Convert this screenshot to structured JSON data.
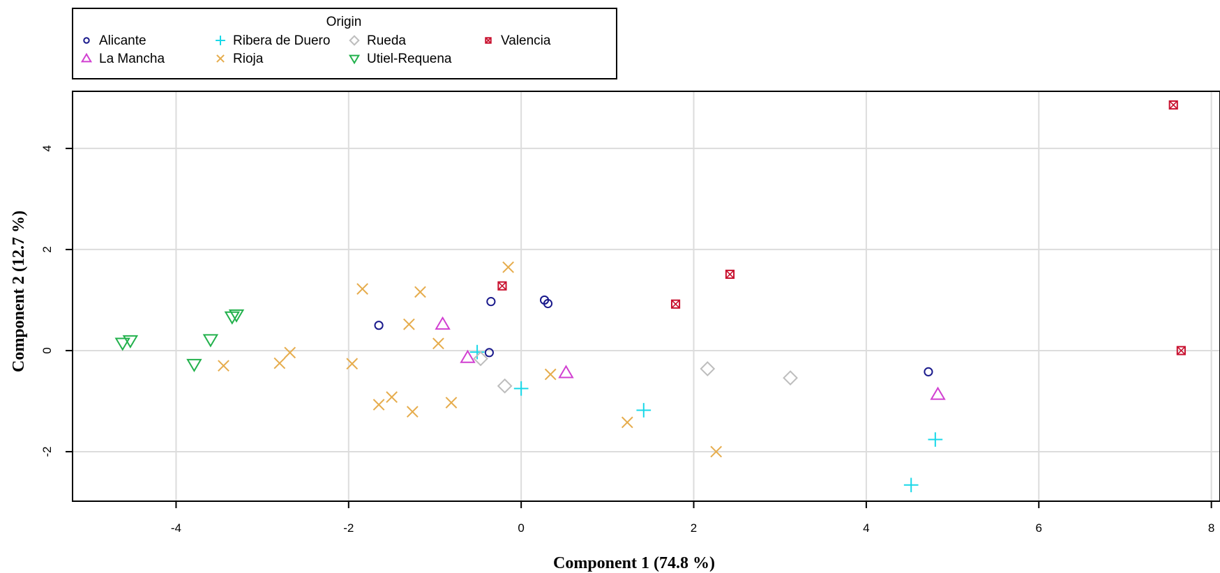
{
  "chart_data": {
    "type": "scatter",
    "xlabel": "Component 1 (74.8 %)",
    "ylabel": "Component 2 (12.7 %)",
    "xlim": [
      -5.2,
      8.1
    ],
    "ylim": [
      -2.98,
      5.13
    ],
    "xticks": [
      -4,
      -2,
      0,
      2,
      4,
      6,
      8
    ],
    "yticks": [
      -2,
      0,
      2,
      4
    ],
    "xtick_labels": [
      "-4",
      "-2",
      "0",
      "2",
      "4",
      "6",
      "8"
    ],
    "ytick_labels": [
      "-2",
      "0",
      "2",
      "4"
    ],
    "grid": true,
    "legend": {
      "title": "Origin",
      "placement": "top-left, above plot",
      "columns": [
        [
          "Alicante",
          "La Mancha"
        ],
        [
          "Ribera de Duero",
          "Rioja"
        ],
        [
          "Rueda",
          "Utiel-Requena"
        ],
        [
          "Valencia"
        ]
      ]
    },
    "series": [
      {
        "name": "Alicante",
        "marker": "circle",
        "color": "#1a1a8c",
        "points": [
          [
            -1.65,
            0.5
          ],
          [
            -0.35,
            0.97
          ],
          [
            -0.37,
            -0.04
          ],
          [
            0.27,
            1.0
          ],
          [
            0.31,
            0.93
          ],
          [
            4.72,
            -0.42
          ]
        ]
      },
      {
        "name": "La Mancha",
        "marker": "triangle-up",
        "color": "#d13fd1",
        "points": [
          [
            -0.91,
            0.52
          ],
          [
            -0.62,
            -0.14
          ],
          [
            0.52,
            -0.44
          ],
          [
            4.83,
            -0.87
          ]
        ]
      },
      {
        "name": "Ribera de Duero",
        "marker": "plus",
        "color": "#18d8e8",
        "points": [
          [
            -0.51,
            -0.03
          ],
          [
            0.0,
            -0.75
          ],
          [
            1.42,
            -1.18
          ],
          [
            4.52,
            -2.66
          ],
          [
            4.8,
            -1.76
          ]
        ]
      },
      {
        "name": "Rioja",
        "marker": "x",
        "color": "#e6ac4c",
        "points": [
          [
            -3.45,
            -0.3
          ],
          [
            -2.8,
            -0.25
          ],
          [
            -2.68,
            -0.04
          ],
          [
            -1.96,
            -0.26
          ],
          [
            -1.84,
            1.22
          ],
          [
            -1.65,
            -1.07
          ],
          [
            -1.5,
            -0.92
          ],
          [
            -1.3,
            0.52
          ],
          [
            -1.26,
            -1.21
          ],
          [
            -1.17,
            1.16
          ],
          [
            -0.96,
            0.14
          ],
          [
            -0.81,
            -1.03
          ],
          [
            -0.15,
            1.65
          ],
          [
            0.34,
            -0.47
          ],
          [
            1.23,
            -1.42
          ],
          [
            2.26,
            -2.0
          ]
        ]
      },
      {
        "name": "Rueda",
        "marker": "diamond",
        "color": "#bdbdbd",
        "points": [
          [
            -0.47,
            -0.16
          ],
          [
            -0.19,
            -0.7
          ],
          [
            2.16,
            -0.36
          ],
          [
            3.12,
            -0.54
          ]
        ]
      },
      {
        "name": "Utiel-Requena",
        "marker": "triangle-down",
        "color": "#22b14c",
        "points": [
          [
            -4.62,
            0.15
          ],
          [
            -4.53,
            0.2
          ],
          [
            -3.79,
            -0.27
          ],
          [
            -3.6,
            0.22
          ],
          [
            -3.35,
            0.67
          ],
          [
            -3.3,
            0.71
          ]
        ]
      },
      {
        "name": "Valencia",
        "marker": "box-x",
        "color": "#c8102e",
        "points": [
          [
            -0.22,
            1.28
          ],
          [
            1.79,
            0.92
          ],
          [
            2.42,
            1.51
          ],
          [
            7.56,
            4.86
          ],
          [
            7.65,
            0.0
          ]
        ]
      }
    ]
  }
}
